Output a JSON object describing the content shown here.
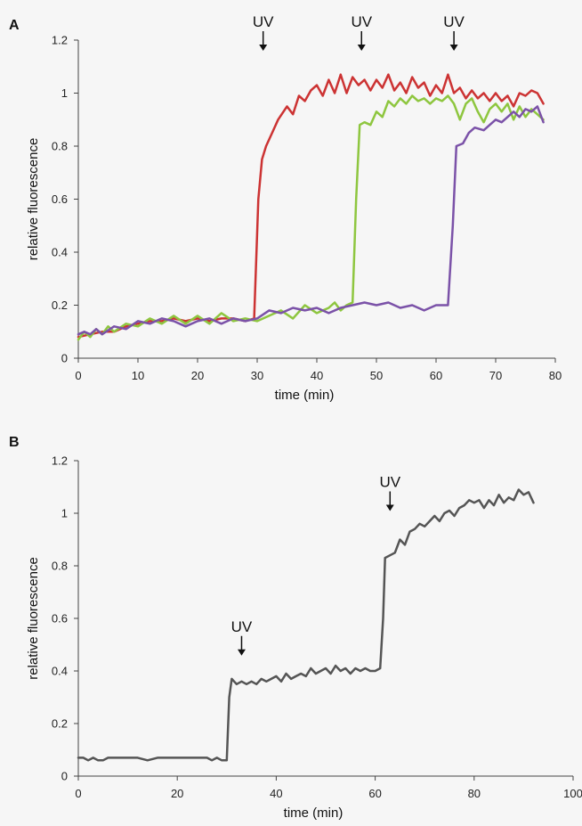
{
  "chart_data": [
    {
      "panel_label": "A",
      "type": "line",
      "xlabel": "time (min)",
      "ylabel": "relative fluorescence",
      "xlim": [
        0,
        80
      ],
      "ylim": [
        0,
        1.2
      ],
      "x_ticks": [
        0,
        10,
        20,
        30,
        40,
        50,
        60,
        70,
        80
      ],
      "x_tick_labels": [
        "0",
        "10",
        "20",
        "30",
        "40",
        "50",
        "60",
        "70",
        "80"
      ],
      "y_ticks": [
        0,
        0.2,
        0.4,
        0.6,
        0.8,
        1,
        1.2
      ],
      "y_tick_labels": [
        "0",
        "0.2",
        "0.4",
        "0.6",
        "0.8",
        "1",
        "1.2"
      ],
      "grid": false,
      "legend": "none",
      "annotations": [
        {
          "text": "UV",
          "x": 31
        },
        {
          "text": "UV",
          "x": 47.5
        },
        {
          "text": "UV",
          "x": 63
        }
      ],
      "series": [
        {
          "color": "#cc3333",
          "points": [
            [
              0,
              0.08
            ],
            [
              2,
              0.09
            ],
            [
              4,
              0.1
            ],
            [
              6,
              0.1
            ],
            [
              8,
              0.12
            ],
            [
              10,
              0.13
            ],
            [
              12,
              0.14
            ],
            [
              14,
              0.14
            ],
            [
              16,
              0.15
            ],
            [
              18,
              0.14
            ],
            [
              20,
              0.15
            ],
            [
              22,
              0.14
            ],
            [
              24,
              0.15
            ],
            [
              26,
              0.15
            ],
            [
              28,
              0.14
            ],
            [
              29.5,
              0.15
            ],
            [
              30.2,
              0.6
            ],
            [
              30.8,
              0.75
            ],
            [
              31.5,
              0.8
            ],
            [
              32.5,
              0.85
            ],
            [
              33.5,
              0.9
            ],
            [
              35,
              0.95
            ],
            [
              36,
              0.92
            ],
            [
              37,
              0.99
            ],
            [
              38,
              0.97
            ],
            [
              39,
              1.01
            ],
            [
              40,
              1.03
            ],
            [
              41,
              0.99
            ],
            [
              42,
              1.05
            ],
            [
              43,
              1.0
            ],
            [
              44,
              1.07
            ],
            [
              45,
              1.0
            ],
            [
              46,
              1.06
            ],
            [
              47,
              1.03
            ],
            [
              48,
              1.05
            ],
            [
              49,
              1.01
            ],
            [
              50,
              1.05
            ],
            [
              51,
              1.02
            ],
            [
              52,
              1.07
            ],
            [
              53,
              1.01
            ],
            [
              54,
              1.04
            ],
            [
              55,
              1.0
            ],
            [
              56,
              1.06
            ],
            [
              57,
              1.02
            ],
            [
              58,
              1.04
            ],
            [
              59,
              0.99
            ],
            [
              60,
              1.03
            ],
            [
              61,
              1.0
            ],
            [
              62,
              1.07
            ],
            [
              63,
              1.0
            ],
            [
              64,
              1.02
            ],
            [
              65,
              0.98
            ],
            [
              66,
              1.01
            ],
            [
              67,
              0.98
            ],
            [
              68,
              1.0
            ],
            [
              69,
              0.97
            ],
            [
              70,
              1.0
            ],
            [
              71,
              0.97
            ],
            [
              72,
              0.99
            ],
            [
              73,
              0.95
            ],
            [
              74,
              1.0
            ],
            [
              75,
              0.99
            ],
            [
              76,
              1.01
            ],
            [
              77,
              1.0
            ],
            [
              78,
              0.96
            ]
          ]
        },
        {
          "color": "#8ec63f",
          "points": [
            [
              0,
              0.07
            ],
            [
              1,
              0.1
            ],
            [
              2,
              0.08
            ],
            [
              3,
              0.11
            ],
            [
              4,
              0.09
            ],
            [
              5,
              0.12
            ],
            [
              6,
              0.1
            ],
            [
              8,
              0.13
            ],
            [
              10,
              0.12
            ],
            [
              12,
              0.15
            ],
            [
              14,
              0.13
            ],
            [
              16,
              0.16
            ],
            [
              18,
              0.13
            ],
            [
              20,
              0.16
            ],
            [
              22,
              0.13
            ],
            [
              24,
              0.17
            ],
            [
              26,
              0.14
            ],
            [
              28,
              0.15
            ],
            [
              30,
              0.14
            ],
            [
              32,
              0.16
            ],
            [
              34,
              0.18
            ],
            [
              36,
              0.15
            ],
            [
              38,
              0.2
            ],
            [
              40,
              0.17
            ],
            [
              42,
              0.19
            ],
            [
              43,
              0.21
            ],
            [
              44,
              0.18
            ],
            [
              45,
              0.2
            ],
            [
              46,
              0.21
            ],
            [
              46.6,
              0.6
            ],
            [
              47.2,
              0.88
            ],
            [
              48,
              0.89
            ],
            [
              49,
              0.88
            ],
            [
              50,
              0.93
            ],
            [
              51,
              0.91
            ],
            [
              52,
              0.97
            ],
            [
              53,
              0.95
            ],
            [
              54,
              0.98
            ],
            [
              55,
              0.96
            ],
            [
              56,
              0.99
            ],
            [
              57,
              0.97
            ],
            [
              58,
              0.98
            ],
            [
              59,
              0.96
            ],
            [
              60,
              0.98
            ],
            [
              61,
              0.97
            ],
            [
              62,
              0.99
            ],
            [
              63,
              0.96
            ],
            [
              64,
              0.9
            ],
            [
              65,
              0.96
            ],
            [
              66,
              0.98
            ],
            [
              67,
              0.93
            ],
            [
              68,
              0.89
            ],
            [
              69,
              0.94
            ],
            [
              70,
              0.96
            ],
            [
              71,
              0.93
            ],
            [
              72,
              0.96
            ],
            [
              73,
              0.9
            ],
            [
              74,
              0.95
            ],
            [
              75,
              0.91
            ],
            [
              76,
              0.94
            ],
            [
              77,
              0.92
            ],
            [
              78,
              0.9
            ]
          ]
        },
        {
          "color": "#7b52a8",
          "points": [
            [
              0,
              0.09
            ],
            [
              1,
              0.1
            ],
            [
              2,
              0.09
            ],
            [
              3,
              0.11
            ],
            [
              4,
              0.09
            ],
            [
              6,
              0.12
            ],
            [
              8,
              0.11
            ],
            [
              10,
              0.14
            ],
            [
              12,
              0.13
            ],
            [
              14,
              0.15
            ],
            [
              16,
              0.14
            ],
            [
              18,
              0.12
            ],
            [
              20,
              0.14
            ],
            [
              22,
              0.15
            ],
            [
              24,
              0.13
            ],
            [
              26,
              0.15
            ],
            [
              28,
              0.14
            ],
            [
              30,
              0.15
            ],
            [
              32,
              0.18
            ],
            [
              34,
              0.17
            ],
            [
              36,
              0.19
            ],
            [
              38,
              0.18
            ],
            [
              40,
              0.19
            ],
            [
              42,
              0.17
            ],
            [
              44,
              0.19
            ],
            [
              46,
              0.2
            ],
            [
              48,
              0.21
            ],
            [
              50,
              0.2
            ],
            [
              52,
              0.21
            ],
            [
              54,
              0.19
            ],
            [
              56,
              0.2
            ],
            [
              58,
              0.18
            ],
            [
              60,
              0.2
            ],
            [
              62,
              0.2
            ],
            [
              62.8,
              0.5
            ],
            [
              63.4,
              0.8
            ],
            [
              64.5,
              0.81
            ],
            [
              65.5,
              0.85
            ],
            [
              66.5,
              0.87
            ],
            [
              68,
              0.86
            ],
            [
              69,
              0.88
            ],
            [
              70,
              0.9
            ],
            [
              71,
              0.89
            ],
            [
              72,
              0.91
            ],
            [
              73,
              0.93
            ],
            [
              74,
              0.91
            ],
            [
              75,
              0.94
            ],
            [
              76,
              0.93
            ],
            [
              77,
              0.95
            ],
            [
              78,
              0.89
            ]
          ]
        }
      ]
    },
    {
      "panel_label": "B",
      "type": "line",
      "xlabel": "time (min)",
      "ylabel": "relative fluorescence",
      "xlim": [
        0,
        100
      ],
      "ylim": [
        0,
        1.2
      ],
      "x_ticks": [
        0,
        20,
        40,
        60,
        80,
        100
      ],
      "x_tick_labels": [
        "0",
        "20",
        "40",
        "60",
        "80",
        "100"
      ],
      "y_ticks": [
        0,
        0.2,
        0.4,
        0.6,
        0.8,
        1,
        1.2
      ],
      "y_tick_labels": [
        "0",
        "0.2",
        "0.4",
        "0.6",
        "0.8",
        "1",
        "1.2"
      ],
      "grid": false,
      "legend": "none",
      "annotations": [
        {
          "text": "UV",
          "x": 33,
          "y_text": 0.55
        },
        {
          "text": "UV",
          "x": 63,
          "y_text": 1.1
        }
      ],
      "series": [
        {
          "color": "#555555",
          "points": [
            [
              0,
              0.07
            ],
            [
              1,
              0.07
            ],
            [
              2,
              0.06
            ],
            [
              3,
              0.07
            ],
            [
              4,
              0.06
            ],
            [
              5,
              0.06
            ],
            [
              6,
              0.07
            ],
            [
              7,
              0.07
            ],
            [
              8,
              0.07
            ],
            [
              9,
              0.07
            ],
            [
              10,
              0.07
            ],
            [
              12,
              0.07
            ],
            [
              14,
              0.06
            ],
            [
              16,
              0.07
            ],
            [
              18,
              0.07
            ],
            [
              20,
              0.07
            ],
            [
              22,
              0.07
            ],
            [
              24,
              0.07
            ],
            [
              26,
              0.07
            ],
            [
              27,
              0.06
            ],
            [
              28,
              0.07
            ],
            [
              29,
              0.06
            ],
            [
              30,
              0.06
            ],
            [
              30.5,
              0.3
            ],
            [
              31,
              0.37
            ],
            [
              32,
              0.35
            ],
            [
              33,
              0.36
            ],
            [
              34,
              0.35
            ],
            [
              35,
              0.36
            ],
            [
              36,
              0.35
            ],
            [
              37,
              0.37
            ],
            [
              38,
              0.36
            ],
            [
              39,
              0.37
            ],
            [
              40,
              0.38
            ],
            [
              41,
              0.36
            ],
            [
              42,
              0.39
            ],
            [
              43,
              0.37
            ],
            [
              44,
              0.38
            ],
            [
              45,
              0.39
            ],
            [
              46,
              0.38
            ],
            [
              47,
              0.41
            ],
            [
              48,
              0.39
            ],
            [
              49,
              0.4
            ],
            [
              50,
              0.41
            ],
            [
              51,
              0.39
            ],
            [
              52,
              0.42
            ],
            [
              53,
              0.4
            ],
            [
              54,
              0.41
            ],
            [
              55,
              0.39
            ],
            [
              56,
              0.41
            ],
            [
              57,
              0.4
            ],
            [
              58,
              0.41
            ],
            [
              59,
              0.4
            ],
            [
              60,
              0.4
            ],
            [
              61,
              0.41
            ],
            [
              61.6,
              0.6
            ],
            [
              62,
              0.83
            ],
            [
              63,
              0.84
            ],
            [
              64,
              0.85
            ],
            [
              65,
              0.9
            ],
            [
              66,
              0.88
            ],
            [
              67,
              0.93
            ],
            [
              68,
              0.94
            ],
            [
              69,
              0.96
            ],
            [
              70,
              0.95
            ],
            [
              71,
              0.97
            ],
            [
              72,
              0.99
            ],
            [
              73,
              0.97
            ],
            [
              74,
              1.0
            ],
            [
              75,
              1.01
            ],
            [
              76,
              0.99
            ],
            [
              77,
              1.02
            ],
            [
              78,
              1.03
            ],
            [
              79,
              1.05
            ],
            [
              80,
              1.04
            ],
            [
              81,
              1.05
            ],
            [
              82,
              1.02
            ],
            [
              83,
              1.05
            ],
            [
              84,
              1.03
            ],
            [
              85,
              1.07
            ],
            [
              86,
              1.04
            ],
            [
              87,
              1.06
            ],
            [
              88,
              1.05
            ],
            [
              89,
              1.09
            ],
            [
              90,
              1.07
            ],
            [
              91,
              1.08
            ],
            [
              92,
              1.04
            ]
          ]
        }
      ]
    }
  ]
}
